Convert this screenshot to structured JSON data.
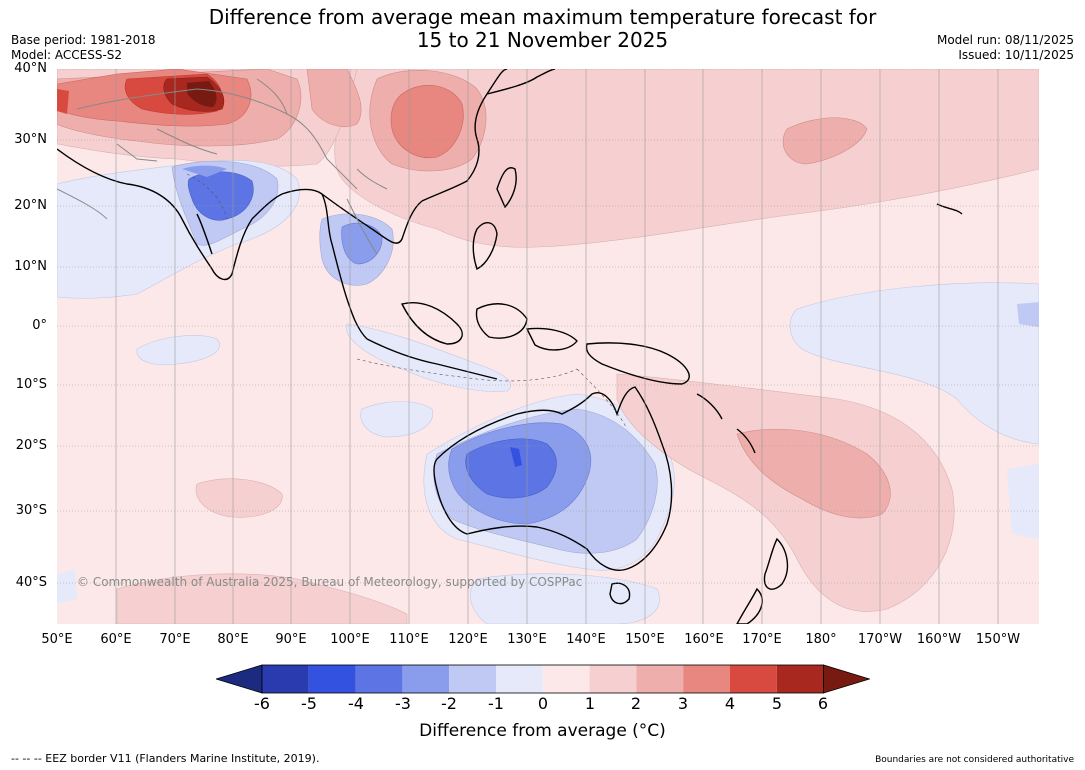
{
  "header": {
    "title_line1": "Difference from average mean maximum temperature forecast for",
    "title_line2": "15 to 21 November 2025",
    "base_period": "Base period: 1981-2018",
    "model": "Model: ACCESS-S2",
    "model_run": "Model run: 08/11/2025",
    "issued": "Issued: 10/11/2025"
  },
  "map": {
    "copyright": "© Commonwealth of Australia 2025, Bureau of Meteorology, supported by COSPPac",
    "lat_labels": [
      "40°N",
      "30°N",
      "20°N",
      "10°N",
      "0°",
      "10°S",
      "20°S",
      "30°S",
      "40°S"
    ],
    "lon_labels": [
      "50°E",
      "60°E",
      "70°E",
      "80°E",
      "90°E",
      "100°E",
      "110°E",
      "120°E",
      "130°E",
      "140°E",
      "150°E",
      "160°E",
      "170°E",
      "180°",
      "170°W",
      "160°W",
      "150°W"
    ]
  },
  "legend": {
    "ticks": [
      "-6",
      "-5",
      "-4",
      "-3",
      "-2",
      "-1",
      "0",
      "1",
      "2",
      "3",
      "4",
      "5",
      "6"
    ],
    "colors": [
      "#1c2b80",
      "#2a3bb0",
      "#3452e0",
      "#5c74e4",
      "#8a9cec",
      "#c0c8f4",
      "#e6e9fa",
      "#fce8e8",
      "#f6d0d0",
      "#eeaeac",
      "#e88680",
      "#d84a40",
      "#a8281f",
      "#761a12"
    ],
    "title": "Difference from average (°C)"
  },
  "footer": {
    "eez_note": "--  --  -- EEZ border V11 (Flanders Marine Institute, 2019).",
    "boundaries_note": "Boundaries are not considered authoritative"
  }
}
